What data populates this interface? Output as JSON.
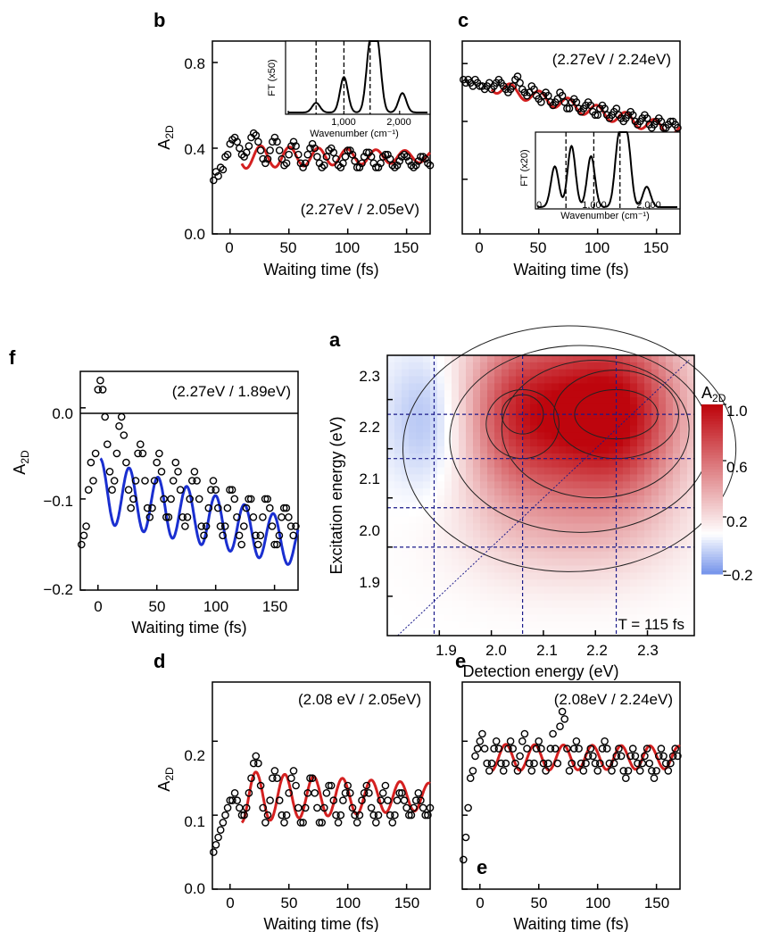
{
  "panels": {
    "a": {
      "label": "a",
      "title": "T = 115 fs",
      "xlabel": "Detection energy (eV)",
      "ylabel": "Excitation energy (eV)",
      "colorbar_title": "A2D",
      "colorbar_ticks": [
        "1.0",
        "0.6",
        "0.2",
        "−0.2"
      ]
    },
    "b": {
      "label": "b",
      "annotation": "(2.27eV / 2.05eV)",
      "xlabel": "Waiting time (fs)",
      "ylabel": "A2D",
      "inset": {
        "ylabel": "FT (x50)",
        "xlabel": "Wavenumber (cm⁻¹)",
        "xticks": [
          "0",
          "1,000",
          "2,000"
        ]
      }
    },
    "c": {
      "label": "c",
      "annotation": "(2.27eV / 2.24eV)",
      "xlabel": "Waiting time (fs)",
      "inset": {
        "ylabel": "FT (x20)",
        "xlabel": "Wavenumber (cm⁻¹)",
        "xticks": [
          "0",
          "1,000",
          "2,000"
        ]
      }
    },
    "d": {
      "label": "d",
      "annotation": "(2.08 eV / 2.05eV)",
      "xlabel": "Waiting time (fs)",
      "ylabel": "A2D"
    },
    "e": {
      "label": "e",
      "annotation": "(2.08eV / 2.24eV)",
      "xlabel": "Waiting time (fs)",
      "inner_letter": "e"
    },
    "f": {
      "label": "f",
      "annotation": "(2.27eV / 1.89eV)",
      "xlabel": "Waiting time (fs)",
      "ylabel": "A2D"
    }
  },
  "colors": {
    "fit_red": "#d42020",
    "fit_blue": "#1a2fd0",
    "guide_lines": "#1a1a8a"
  },
  "chart_data": [
    {
      "panel": "a",
      "type": "heatmap",
      "x_range": [
        1.8,
        2.39
      ],
      "y_range": [
        1.82,
        2.39
      ],
      "xticks": [
        "1.9",
        "2.0",
        "2.1",
        "2.2",
        "2.3"
      ],
      "yticks": [
        "1.9",
        "2.0",
        "2.1",
        "2.2",
        "2.3"
      ],
      "color_range": [
        -0.3,
        1.0
      ],
      "peaks": [
        {
          "x": 2.24,
          "y": 2.27,
          "amplitude": 1.0
        },
        {
          "x": 2.06,
          "y": 2.27,
          "amplitude": 0.8
        }
      ],
      "negative_region": {
        "x": 1.89,
        "y": 2.26,
        "amplitude": -0.25
      },
      "guide_x": [
        1.89,
        2.06,
        2.24
      ],
      "guide_y": [
        2.27,
        2.18,
        2.08,
        2.0
      ]
    },
    {
      "panel": "b",
      "type": "line",
      "xlim": [
        -15,
        170
      ],
      "ylim": [
        0,
        0.9
      ],
      "xticks": [
        0,
        50,
        100,
        150
      ],
      "yticks": [
        "0.0",
        "0.4",
        "0.8"
      ],
      "fit": {
        "offset": 0.36,
        "amplitude": 0.055,
        "period_fs": 24.5,
        "phase_fs": 26,
        "decay": 0.0045,
        "start": 10
      },
      "points_x": [
        -14,
        -12,
        -10,
        -8,
        -6,
        -4,
        -2,
        0,
        2,
        4,
        6,
        8,
        10,
        12,
        14,
        16,
        18,
        20,
        22,
        24,
        26,
        28,
        30,
        32,
        34,
        36,
        38,
        40,
        42,
        44,
        46,
        48,
        50,
        52,
        54,
        56,
        58,
        60,
        62,
        64,
        66,
        68,
        70,
        72,
        74,
        76,
        78,
        80,
        82,
        84,
        86,
        88,
        90,
        92,
        94,
        96,
        98,
        100,
        102,
        104,
        106,
        108,
        110,
        112,
        114,
        116,
        118,
        120,
        122,
        124,
        126,
        128,
        130,
        132,
        134,
        136,
        138,
        140,
        142,
        144,
        146,
        148,
        150,
        152,
        154,
        156,
        158,
        160,
        162,
        164,
        166,
        168,
        170
      ],
      "points_y": [
        0.25,
        0.29,
        0.27,
        0.31,
        0.3,
        0.36,
        0.37,
        0.42,
        0.44,
        0.45,
        0.43,
        0.4,
        0.37,
        0.36,
        0.38,
        0.41,
        0.45,
        0.47,
        0.46,
        0.43,
        0.39,
        0.35,
        0.33,
        0.35,
        0.39,
        0.43,
        0.45,
        0.43,
        0.39,
        0.35,
        0.32,
        0.33,
        0.37,
        0.41,
        0.43,
        0.41,
        0.37,
        0.33,
        0.31,
        0.33,
        0.37,
        0.4,
        0.42,
        0.4,
        0.36,
        0.33,
        0.31,
        0.32,
        0.36,
        0.39,
        0.4,
        0.38,
        0.35,
        0.32,
        0.31,
        0.33,
        0.36,
        0.39,
        0.39,
        0.37,
        0.34,
        0.31,
        0.31,
        0.33,
        0.36,
        0.38,
        0.38,
        0.36,
        0.33,
        0.31,
        0.31,
        0.33,
        0.36,
        0.37,
        0.37,
        0.35,
        0.32,
        0.31,
        0.32,
        0.34,
        0.36,
        0.37,
        0.36,
        0.34,
        0.32,
        0.31,
        0.32,
        0.34,
        0.36,
        0.36,
        0.35,
        0.33,
        0.32
      ],
      "inset": {
        "xlim": [
          0,
          2500
        ],
        "peaks_cm1": [
          500,
          1000,
          1470,
          1600,
          2050
        ],
        "peak_heights": [
          0.15,
          0.55,
          1.0,
          1.0,
          0.3
        ],
        "dashed_cm1": [
          500,
          1000,
          1470
        ]
      }
    },
    {
      "panel": "c",
      "type": "line",
      "xlim": [
        -15,
        170
      ],
      "ylim": [
        0.45,
        1.05
      ],
      "fit": {
        "offset": 0.92,
        "slope": -0.0009,
        "amplitude": 0.02,
        "period_fs": 24.5,
        "phase_fs": 26,
        "start": 10
      },
      "points_x": [
        -14,
        -12,
        -10,
        -8,
        -6,
        -4,
        -2,
        0,
        2,
        4,
        6,
        8,
        10,
        12,
        14,
        16,
        18,
        20,
        22,
        24,
        26,
        28,
        30,
        32,
        34,
        36,
        38,
        40,
        42,
        44,
        46,
        48,
        50,
        52,
        54,
        56,
        58,
        60,
        62,
        64,
        66,
        68,
        70,
        72,
        74,
        76,
        78,
        80,
        82,
        84,
        86,
        88,
        90,
        92,
        94,
        96,
        98,
        100,
        102,
        104,
        106,
        108,
        110,
        112,
        114,
        116,
        118,
        120,
        122,
        124,
        126,
        128,
        130,
        132,
        134,
        136,
        138,
        140,
        142,
        144,
        146,
        148,
        150,
        152,
        154,
        156,
        158,
        160,
        162,
        164,
        166,
        168
      ],
      "points_y": [
        0.93,
        0.92,
        0.93,
        0.92,
        0.91,
        0.93,
        0.92,
        0.91,
        0.91,
        0.9,
        0.91,
        0.92,
        0.9,
        0.91,
        0.92,
        0.93,
        0.92,
        0.91,
        0.9,
        0.89,
        0.9,
        0.91,
        0.93,
        0.94,
        0.92,
        0.9,
        0.89,
        0.88,
        0.89,
        0.91,
        0.9,
        0.88,
        0.87,
        0.86,
        0.88,
        0.89,
        0.88,
        0.86,
        0.85,
        0.86,
        0.87,
        0.89,
        0.88,
        0.86,
        0.84,
        0.84,
        0.86,
        0.87,
        0.86,
        0.84,
        0.83,
        0.84,
        0.85,
        0.86,
        0.85,
        0.83,
        0.82,
        0.82,
        0.84,
        0.85,
        0.84,
        0.82,
        0.81,
        0.82,
        0.83,
        0.84,
        0.82,
        0.81,
        0.8,
        0.81,
        0.82,
        0.83,
        0.82,
        0.8,
        0.79,
        0.8,
        0.81,
        0.82,
        0.81,
        0.79,
        0.78,
        0.79,
        0.8,
        0.81,
        0.8,
        0.78,
        0.78,
        0.79,
        0.8,
        0.8,
        0.79,
        0.78
      ],
      "inset": {
        "xlim": [
          0,
          2500
        ],
        "peaks_cm1": [
          300,
          600,
          950,
          1450,
          1600,
          1950
        ],
        "peak_heights": [
          0.6,
          0.9,
          0.75,
          1.0,
          1.0,
          0.3
        ],
        "dashed_cm1": [
          500,
          1000,
          1470
        ]
      }
    },
    {
      "panel": "d",
      "type": "line",
      "xlim": [
        -15,
        170
      ],
      "ylim": [
        0,
        0.28
      ],
      "xticks": [
        0,
        50,
        100,
        150
      ],
      "yticks": [
        "0.0",
        "0.1",
        "0.2"
      ],
      "fit": {
        "offset": 0.125,
        "amplitude": 0.035,
        "period_fs": 24.5,
        "phase_fs": 22,
        "decay": 0.004,
        "start": 10
      },
      "points_x": [
        -14,
        -12,
        -10,
        -8,
        -6,
        -4,
        -2,
        0,
        2,
        4,
        6,
        8,
        10,
        12,
        14,
        16,
        18,
        20,
        22,
        24,
        26,
        28,
        30,
        32,
        34,
        36,
        38,
        40,
        42,
        44,
        46,
        48,
        50,
        52,
        54,
        56,
        58,
        60,
        62,
        64,
        66,
        68,
        70,
        72,
        74,
        76,
        78,
        80,
        82,
        84,
        86,
        88,
        90,
        92,
        94,
        96,
        98,
        100,
        102,
        104,
        106,
        108,
        110,
        112,
        114,
        116,
        118,
        120,
        122,
        124,
        126,
        128,
        130,
        132,
        134,
        136,
        138,
        140,
        142,
        144,
        146,
        148,
        150,
        152,
        154,
        156,
        158,
        160,
        162,
        164,
        166,
        168,
        170
      ],
      "points_y": [
        0.05,
        0.06,
        0.07,
        0.08,
        0.09,
        0.1,
        0.11,
        0.12,
        0.12,
        0.13,
        0.12,
        0.11,
        0.1,
        0.1,
        0.11,
        0.13,
        0.15,
        0.17,
        0.18,
        0.17,
        0.14,
        0.11,
        0.09,
        0.1,
        0.12,
        0.15,
        0.16,
        0.15,
        0.12,
        0.1,
        0.09,
        0.1,
        0.13,
        0.15,
        0.16,
        0.14,
        0.11,
        0.09,
        0.09,
        0.11,
        0.13,
        0.15,
        0.15,
        0.13,
        0.11,
        0.09,
        0.09,
        0.11,
        0.13,
        0.14,
        0.14,
        0.12,
        0.1,
        0.09,
        0.1,
        0.12,
        0.13,
        0.14,
        0.13,
        0.11,
        0.1,
        0.09,
        0.1,
        0.12,
        0.13,
        0.14,
        0.13,
        0.11,
        0.1,
        0.09,
        0.1,
        0.12,
        0.13,
        0.14,
        0.12,
        0.1,
        0.09,
        0.1,
        0.12,
        0.13,
        0.13,
        0.12,
        0.11,
        0.1,
        0.1,
        0.11,
        0.12,
        0.13,
        0.12,
        0.11,
        0.1,
        0.1,
        0.11
      ],
      "fit_end": 170
    },
    {
      "panel": "e",
      "type": "line",
      "xlim": [
        -15,
        170
      ],
      "ylim": [
        0,
        0.28
      ],
      "xticks": [
        0,
        50,
        100,
        150
      ],
      "fit": {
        "offset": 0.178,
        "amplitude": 0.018,
        "period_fs": 24.5,
        "phase_fs": 22,
        "decay": 0.001,
        "start": 10
      },
      "points_x": [
        -14,
        -12,
        -10,
        -8,
        -6,
        -4,
        -2,
        0,
        2,
        4,
        6,
        8,
        10,
        12,
        14,
        16,
        18,
        20,
        22,
        24,
        26,
        28,
        30,
        32,
        34,
        36,
        38,
        40,
        42,
        44,
        46,
        48,
        50,
        52,
        54,
        56,
        58,
        60,
        62,
        64,
        66,
        68,
        70,
        72,
        74,
        76,
        78,
        80,
        82,
        84,
        86,
        88,
        90,
        92,
        94,
        96,
        98,
        100,
        102,
        104,
        106,
        108,
        110,
        112,
        114,
        116,
        118,
        120,
        122,
        124,
        126,
        128,
        130,
        132,
        134,
        136,
        138,
        140,
        142,
        144,
        146,
        148,
        150,
        152,
        154,
        156,
        158,
        160,
        162,
        164,
        166,
        168
      ],
      "points_y": [
        0.04,
        0.07,
        0.11,
        0.15,
        0.16,
        0.18,
        0.19,
        0.2,
        0.21,
        0.19,
        0.17,
        0.16,
        0.17,
        0.19,
        0.2,
        0.19,
        0.17,
        0.16,
        0.17,
        0.19,
        0.2,
        0.19,
        0.17,
        0.16,
        0.18,
        0.2,
        0.21,
        0.19,
        0.17,
        0.16,
        0.17,
        0.19,
        0.2,
        0.19,
        0.17,
        0.16,
        0.17,
        0.19,
        0.21,
        0.19,
        0.17,
        0.22,
        0.24,
        0.23,
        0.19,
        0.16,
        0.17,
        0.19,
        0.2,
        0.19,
        0.17,
        0.16,
        0.17,
        0.18,
        0.19,
        0.18,
        0.17,
        0.16,
        0.17,
        0.19,
        0.2,
        0.19,
        0.17,
        0.16,
        0.17,
        0.18,
        0.19,
        0.18,
        0.16,
        0.15,
        0.16,
        0.18,
        0.19,
        0.18,
        0.17,
        0.16,
        0.17,
        0.18,
        0.19,
        0.17,
        0.16,
        0.15,
        0.16,
        0.18,
        0.19,
        0.18,
        0.17,
        0.16,
        0.17,
        0.18,
        0.19,
        0.18
      ]
    },
    {
      "panel": "f",
      "type": "line",
      "xlim": [
        -15,
        170
      ],
      "ylim": [
        -0.2,
        0.04
      ],
      "xticks": [
        0,
        50,
        100,
        150
      ],
      "yticks": [
        "0.0",
        "−0.1",
        "−0.2"
      ],
      "fit": {
        "offset": -0.09,
        "slope": -0.00035,
        "amplitude": 0.035,
        "period_fs": 24.5,
        "phase_fs": 2,
        "decay": 0.002,
        "start": 2
      },
      "points_x": [
        -14,
        -12,
        -10,
        -8,
        -6,
        -4,
        -2,
        0,
        2,
        4,
        6,
        8,
        10,
        12,
        14,
        16,
        18,
        20,
        22,
        24,
        26,
        28,
        30,
        32,
        34,
        36,
        38,
        40,
        42,
        44,
        46,
        48,
        50,
        52,
        54,
        56,
        58,
        60,
        62,
        64,
        66,
        68,
        70,
        72,
        74,
        76,
        78,
        80,
        82,
        84,
        86,
        88,
        90,
        92,
        94,
        96,
        98,
        100,
        102,
        104,
        106,
        108,
        110,
        112,
        114,
        116,
        118,
        120,
        122,
        124,
        126,
        128,
        130,
        132,
        134,
        136,
        138,
        140,
        142,
        144,
        146,
        148,
        150,
        152,
        154,
        156,
        158,
        160,
        162,
        164,
        166,
        168
      ],
      "points_y": [
        -0.15,
        -0.14,
        -0.13,
        -0.09,
        -0.06,
        -0.08,
        -0.05,
        0.02,
        0.03,
        0.02,
        -0.01,
        -0.04,
        -0.07,
        -0.09,
        -0.08,
        -0.05,
        -0.02,
        -0.01,
        -0.03,
        -0.06,
        -0.09,
        -0.11,
        -0.1,
        -0.08,
        -0.05,
        -0.04,
        -0.05,
        -0.08,
        -0.11,
        -0.12,
        -0.11,
        -0.08,
        -0.06,
        -0.05,
        -0.07,
        -0.1,
        -0.12,
        -0.12,
        -0.1,
        -0.08,
        -0.06,
        -0.07,
        -0.09,
        -0.12,
        -0.13,
        -0.12,
        -0.1,
        -0.08,
        -0.07,
        -0.08,
        -0.1,
        -0.13,
        -0.14,
        -0.13,
        -0.11,
        -0.09,
        -0.08,
        -0.09,
        -0.11,
        -0.13,
        -0.14,
        -0.13,
        -0.11,
        -0.09,
        -0.09,
        -0.1,
        -0.12,
        -0.14,
        -0.15,
        -0.13,
        -0.11,
        -0.1,
        -0.1,
        -0.12,
        -0.14,
        -0.15,
        -0.14,
        -0.12,
        -0.1,
        -0.1,
        -0.11,
        -0.13,
        -0.15,
        -0.15,
        -0.14,
        -0.12,
        -0.11,
        -0.11,
        -0.12,
        -0.13,
        -0.14,
        -0.13
      ]
    }
  ]
}
